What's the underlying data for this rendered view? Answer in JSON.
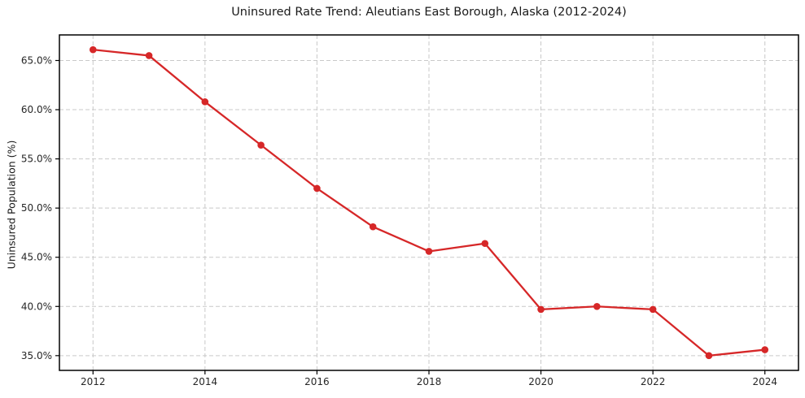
{
  "chart_data": {
    "type": "line",
    "title": "Uninsured Rate Trend: Aleutians East Borough, Alaska (2012-2024)",
    "xlabel": "",
    "ylabel": "Uninsured Population (%)",
    "x": [
      2012,
      2013,
      2014,
      2015,
      2016,
      2017,
      2018,
      2019,
      2020,
      2021,
      2022,
      2023,
      2024
    ],
    "values": [
      66.1,
      65.5,
      60.8,
      56.4,
      52.0,
      48.1,
      45.6,
      46.4,
      39.7,
      40.0,
      39.7,
      35.0,
      35.6
    ],
    "xlim": [
      2011.4,
      2024.6
    ],
    "ylim": [
      33.5,
      67.6
    ],
    "xticks": [
      2012,
      2014,
      2016,
      2018,
      2020,
      2022,
      2024
    ],
    "yticks": [
      65,
      60,
      55,
      50,
      45,
      40,
      35
    ],
    "ytick_suffix": "%",
    "ytick_decimals": 1,
    "grid": true,
    "grid_style": "dashed",
    "legend": false,
    "colors": {
      "line": "#d62728",
      "marker": "#d62728",
      "grid": "#c9c9c9",
      "frame": "#000000",
      "tick_text": "#262626",
      "background": "#ffffff"
    }
  }
}
